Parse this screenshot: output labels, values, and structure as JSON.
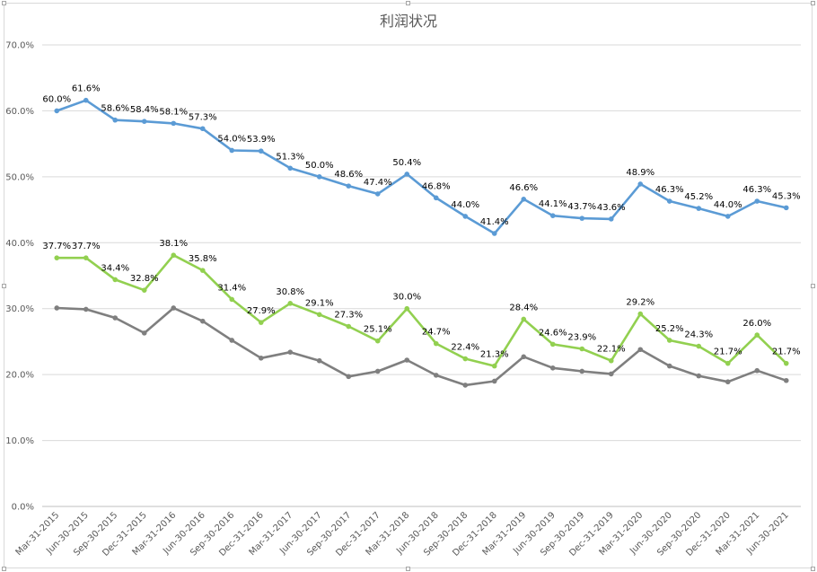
{
  "chart_data": {
    "type": "line",
    "title": "利润状况",
    "xlabel": "",
    "ylabel": "",
    "ylim": [
      0,
      70
    ],
    "grid": true,
    "legend": "none",
    "y_ticks": [
      "0.0%",
      "10.0%",
      "20.0%",
      "30.0%",
      "40.0%",
      "50.0%",
      "60.0%",
      "70.0%"
    ],
    "categories": [
      "Mar-31-2015",
      "Jun-30-2015",
      "Sep-30-2015",
      "Dec-31-2015",
      "Mar-31-2016",
      "Jun-30-2016",
      "Sep-30-2016",
      "Dec-31-2016",
      "Mar-31-2017",
      "Jun-30-2017",
      "Sep-30-2017",
      "Dec-31-2017",
      "Mar-31-2018",
      "Jun-30-2018",
      "Sep-30-2018",
      "Dec-31-2018",
      "Mar-31-2019",
      "Jun-30-2019",
      "Sep-30-2019",
      "Dec-31-2019",
      "Mar-31-2020",
      "Jun-30-2020",
      "Sep-30-2020",
      "Dec-31-2020",
      "Mar-31-2021",
      "Jun-30-2021"
    ],
    "series": [
      {
        "color": "#5b9bd5",
        "show_labels": true,
        "values": [
          60.0,
          61.6,
          58.6,
          58.4,
          58.1,
          57.3,
          54.0,
          53.9,
          51.3,
          50.0,
          48.6,
          47.4,
          50.4,
          46.8,
          44.0,
          41.4,
          46.6,
          44.1,
          43.7,
          43.6,
          48.9,
          46.3,
          45.2,
          44.0,
          46.3,
          45.3
        ]
      },
      {
        "color": "#92d050",
        "show_labels": true,
        "values": [
          37.7,
          37.7,
          34.4,
          32.8,
          38.1,
          35.8,
          31.4,
          27.9,
          30.8,
          29.1,
          27.3,
          25.1,
          30.0,
          24.7,
          22.4,
          21.3,
          28.4,
          24.6,
          23.9,
          22.1,
          29.2,
          25.2,
          24.3,
          21.7,
          26.0,
          21.7
        ]
      },
      {
        "color": "#7f7f7f",
        "show_labels": false,
        "values": [
          30.1,
          29.9,
          28.6,
          26.3,
          30.1,
          28.1,
          25.2,
          22.5,
          23.4,
          22.1,
          19.7,
          20.5,
          22.2,
          19.9,
          18.4,
          19.0,
          22.7,
          21.0,
          20.5,
          20.1,
          23.8,
          21.3,
          19.8,
          18.9,
          20.6,
          19.1
        ]
      }
    ]
  }
}
